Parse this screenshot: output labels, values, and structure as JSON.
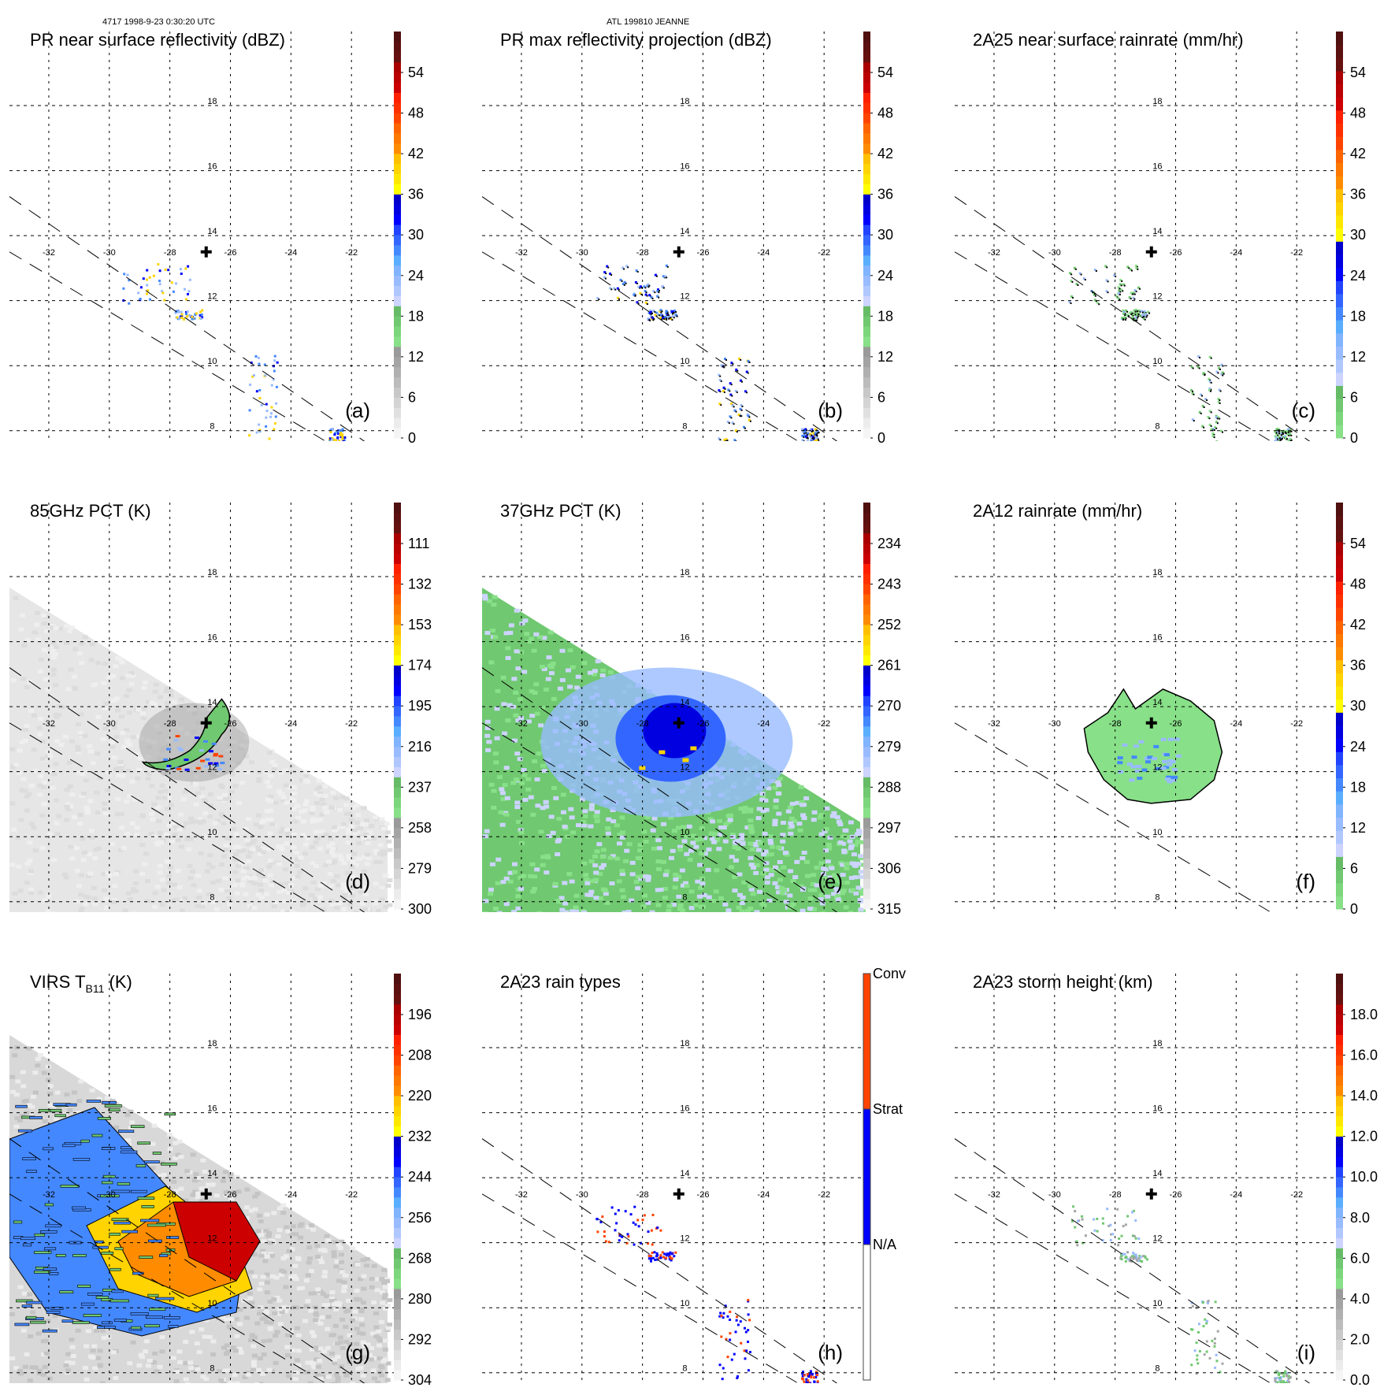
{
  "header": {
    "orbit_time": "4717 1998-9-23 0:30:20 UTC",
    "storm": "ATL 199810 JEANNE"
  },
  "chart_data": [
    {
      "id": "a",
      "type": "heatmap",
      "title": "PR near surface reflectivity (dBZ)",
      "panel_label": "(a)",
      "xticks": [
        "-32",
        "-30",
        "-28",
        "-26",
        "-24",
        "-22"
      ],
      "yticks": [
        "18",
        "16",
        "14",
        "12",
        "10",
        "8"
      ],
      "colorbar": {
        "ticks": [
          "54",
          "48",
          "42",
          "36",
          "30",
          "24",
          "18",
          "12",
          "6",
          "0"
        ],
        "range": [
          0,
          60
        ]
      },
      "swath": "pr",
      "storm_center": {
        "lon": -26.8,
        "lat": 13.5
      },
      "grid": true
    },
    {
      "id": "b",
      "type": "heatmap",
      "title": "PR max reflectivity projection (dBZ)",
      "panel_label": "(b)",
      "xticks": [
        "-32",
        "-30",
        "-28",
        "-26",
        "-24",
        "-22"
      ],
      "yticks": [
        "18",
        "16",
        "14",
        "12",
        "10",
        "8"
      ],
      "colorbar": {
        "ticks": [
          "54",
          "48",
          "42",
          "36",
          "30",
          "24",
          "18",
          "12",
          "6",
          "0"
        ],
        "range": [
          0,
          60
        ]
      },
      "swath": "pr",
      "storm_center": {
        "lon": -26.8,
        "lat": 13.5
      },
      "grid": true
    },
    {
      "id": "c",
      "type": "heatmap",
      "title": "2A25 near surface rainrate (mm/hr)",
      "panel_label": "(c)",
      "xticks": [
        "-32",
        "-30",
        "-28",
        "-26",
        "-24",
        "-22"
      ],
      "yticks": [
        "18",
        "16",
        "14",
        "12",
        "10",
        "8"
      ],
      "colorbar": {
        "ticks": [
          "54",
          "48",
          "42",
          "36",
          "30",
          "24",
          "18",
          "12",
          "6",
          "0"
        ],
        "range": [
          0,
          60
        ]
      },
      "swath": "pr",
      "storm_center": {
        "lon": -26.8,
        "lat": 13.5
      },
      "grid": true
    },
    {
      "id": "d",
      "type": "heatmap",
      "title": "85GHz PCT (K)",
      "panel_label": "(d)",
      "xticks": [
        "-32",
        "-30",
        "-28",
        "-26",
        "-24",
        "-22"
      ],
      "yticks": [
        "18",
        "16",
        "14",
        "12",
        "10",
        "8"
      ],
      "colorbar": {
        "ticks": [
          "111",
          "132",
          "153",
          "174",
          "195",
          "216",
          "237",
          "258",
          "279",
          "300"
        ],
        "range": [
          300,
          90
        ]
      },
      "swath": "tmi",
      "storm_center": {
        "lon": -26.8,
        "lat": 13.5
      },
      "grid": true
    },
    {
      "id": "e",
      "type": "heatmap",
      "title": "37GHz PCT (K)",
      "panel_label": "(e)",
      "xticks": [
        "-32",
        "-30",
        "-28",
        "-26",
        "-24",
        "-22"
      ],
      "yticks": [
        "18",
        "16",
        "14",
        "12",
        "10",
        "8"
      ],
      "colorbar": {
        "ticks": [
          "234",
          "243",
          "252",
          "261",
          "270",
          "279",
          "288",
          "297",
          "306",
          "315"
        ],
        "range": [
          315,
          225
        ]
      },
      "swath": "tmi",
      "storm_center": {
        "lon": -26.8,
        "lat": 13.5
      },
      "grid": true
    },
    {
      "id": "f",
      "type": "heatmap",
      "title": "2A12 rainrate (mm/hr)",
      "panel_label": "(f)",
      "xticks": [
        "-32",
        "-30",
        "-28",
        "-26",
        "-24",
        "-22"
      ],
      "yticks": [
        "18",
        "16",
        "14",
        "12",
        "10",
        "8"
      ],
      "colorbar": {
        "ticks": [
          "54",
          "48",
          "42",
          "36",
          "30",
          "24",
          "18",
          "12",
          "6",
          "0"
        ],
        "range": [
          0,
          60
        ]
      },
      "swath": "pr",
      "storm_center": {
        "lon": -26.8,
        "lat": 13.5
      },
      "grid": true
    },
    {
      "id": "g",
      "type": "heatmap",
      "title": "VIRS T",
      "title_sub": "B11",
      "title_suffix": " (K)",
      "panel_label": "(g)",
      "xticks": [
        "-32",
        "-30",
        "-28",
        "-26",
        "-24",
        "-22"
      ],
      "yticks": [
        "18",
        "16",
        "14",
        "12",
        "10",
        "8"
      ],
      "colorbar": {
        "ticks": [
          "196",
          "208",
          "220",
          "232",
          "244",
          "256",
          "268",
          "280",
          "292",
          "304"
        ],
        "range": [
          304,
          184
        ]
      },
      "swath": "virs",
      "storm_center": {
        "lon": -26.8,
        "lat": 13.5
      },
      "grid": true
    },
    {
      "id": "h",
      "type": "heatmap",
      "title": "2A23 rain types",
      "panel_label": "(h)",
      "xticks": [
        "-32",
        "-30",
        "-28",
        "-26",
        "-24",
        "-22"
      ],
      "yticks": [
        "18",
        "16",
        "14",
        "12",
        "10",
        "8"
      ],
      "colorbar": {
        "categories": [
          "Conv",
          "Strat",
          "N/A"
        ],
        "colors": [
          "#ff4400",
          "#0000ff",
          "#ffffff"
        ]
      },
      "swath": "pr",
      "storm_center": {
        "lon": -26.8,
        "lat": 13.5
      },
      "grid": true
    },
    {
      "id": "i",
      "type": "heatmap",
      "title": "2A23 storm height (km)",
      "panel_label": "(i)",
      "xticks": [
        "-32",
        "-30",
        "-28",
        "-26",
        "-24",
        "-22"
      ],
      "yticks": [
        "18",
        "16",
        "14",
        "12",
        "10",
        "8"
      ],
      "colorbar": {
        "ticks": [
          "18.0",
          "16.0",
          "14.0",
          "12.0",
          "10.0",
          "8.0",
          "6.0",
          "4.0",
          "2.0",
          "0.0"
        ],
        "range": [
          0,
          20
        ]
      },
      "swath": "pr",
      "storm_center": {
        "lon": -26.8,
        "lat": 13.5
      },
      "grid": true
    }
  ],
  "colorbar_palette": [
    "#f5f5f5",
    "#ececec",
    "#e0e0e0",
    "#d4d4d4",
    "#c8c8c8",
    "#bcbcbc",
    "#b0b0b0",
    "#a4a4a4",
    "#9a9a9a",
    "#88e088",
    "#7cd67c",
    "#70c870",
    "#66bb66",
    "#ccd4ff",
    "#b0c8ff",
    "#99bbff",
    "#80b4ff",
    "#5aaeff",
    "#4488ff",
    "#3366ff",
    "#2244ff",
    "#0000ff",
    "#0000e0",
    "#0000cc",
    "#ffff00",
    "#ffe800",
    "#ffd400",
    "#ffc000",
    "#ff8c00",
    "#ff7800",
    "#ff6400",
    "#ff4400",
    "#ff3000",
    "#ff2000",
    "#cc0000",
    "#bb0000",
    "#aa0000",
    "#661010",
    "#5c1010",
    "#501010"
  ],
  "rain_palette": [
    "#88e088",
    "#7cd67c",
    "#70c870",
    "#66bb66",
    "#ccd4ff",
    "#b0c8ff",
    "#99bbff",
    "#80b4ff",
    "#5aaeff",
    "#4488ff",
    "#3366ff",
    "#2244ff",
    "#0000ff",
    "#0000e0",
    "#0000cc",
    "#ffff00",
    "#ffe800",
    "#ffd400",
    "#ffc000",
    "#ff8c00",
    "#ff7800",
    "#ff6400",
    "#ff4400",
    "#ff3000",
    "#ff2000",
    "#cc0000",
    "#bb0000",
    "#aa0000",
    "#661010",
    "#5c1010",
    "#501010"
  ]
}
